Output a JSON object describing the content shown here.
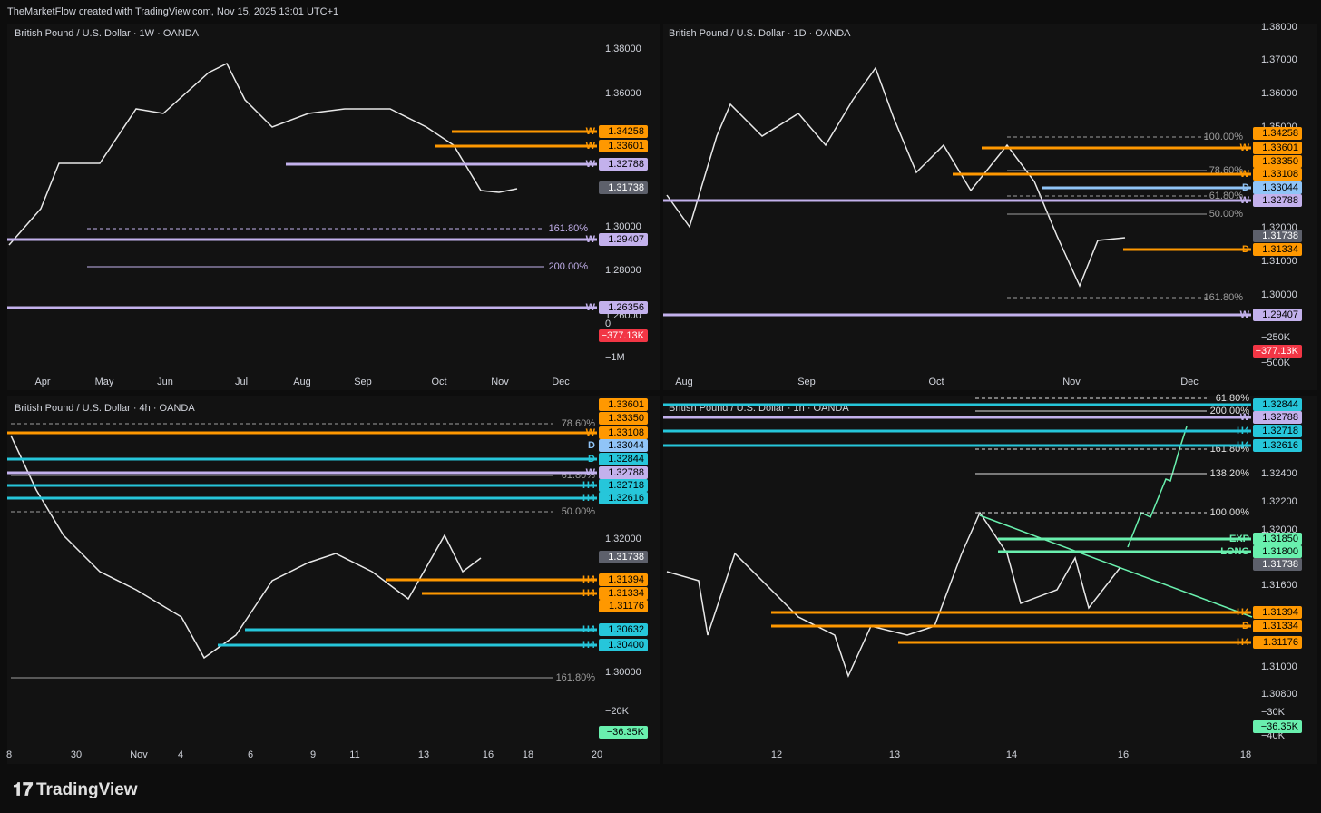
{
  "header": {
    "text": "TheMarketFlow created with TradingView.com, Nov 15, 2025 13:01 UTC+1"
  },
  "footer": {
    "brand": "TradingView"
  },
  "panels": [
    {
      "title": "British Pound / U.S. Dollar · 1W · OANDA",
      "price_axis": [
        "1.38000",
        "1.36000",
        "1.30000",
        "1.28000",
        "1.26000"
      ],
      "volume_axis": [
        "0",
        "−1M"
      ],
      "volume_label": "−377.13K",
      "levels": [
        {
          "price": "1.34258",
          "color": "#ff9800",
          "tag": "W"
        },
        {
          "price": "1.33601",
          "color": "#ff9800",
          "tag": "W"
        },
        {
          "price": "1.32788",
          "color": "#c3b1ec",
          "tag": "W"
        },
        {
          "price": "1.31738",
          "color": "#5d606b"
        },
        {
          "price": "1.29407",
          "color": "#c3b1ec",
          "tag": "W"
        },
        {
          "price": "1.26356",
          "color": "#c3b1ec",
          "tag": "W"
        }
      ],
      "fib_labels": [
        "161.80%",
        "200.00%"
      ],
      "time_axis": [
        "Apr",
        "May",
        "Jun",
        "Jul",
        "Aug",
        "Sep",
        "Oct",
        "Nov",
        "Dec"
      ]
    },
    {
      "title": "British Pound / U.S. Dollar · 1D · OANDA",
      "price_axis": [
        "1.38000",
        "1.37000",
        "1.36000",
        "1.35000",
        "1.32000",
        "1.31000",
        "1.30000"
      ],
      "volume_axis": [
        "−250K",
        "−500K"
      ],
      "volume_label": "−377.13K",
      "levels": [
        {
          "price": "1.34258",
          "color": "#ff9800"
        },
        {
          "price": "1.33601",
          "color": "#ff9800",
          "tag": "W"
        },
        {
          "price": "1.33350",
          "color": "#ff9800"
        },
        {
          "price": "1.33108",
          "color": "#ff9800",
          "tag": "W"
        },
        {
          "price": "1.33044",
          "color": "#90c4f7",
          "tag": "D"
        },
        {
          "price": "1.32788",
          "color": "#c3b1ec",
          "tag": "W"
        },
        {
          "price": "1.31738",
          "color": "#5d606b"
        },
        {
          "price": "1.31334",
          "color": "#ff9800",
          "tag": "D"
        },
        {
          "price": "1.29407",
          "color": "#c3b1ec",
          "tag": "W"
        }
      ],
      "fib_labels": [
        "100.00%",
        "78.60%",
        "61.80%",
        "50.00%",
        "161.80%"
      ],
      "time_axis": [
        "Aug",
        "Sep",
        "Oct",
        "Nov",
        "Dec"
      ]
    },
    {
      "title": "British Pound / U.S. Dollar · 4h · OANDA",
      "price_axis": [
        "1.32000",
        "1.30000"
      ],
      "volume_axis": [
        "−20K"
      ],
      "volume_label": "−36.35K",
      "levels": [
        {
          "price": "1.33601",
          "color": "#ff9800"
        },
        {
          "price": "1.33350",
          "color": "#ff9800"
        },
        {
          "price": "1.33108",
          "color": "#ff9800",
          "tag": "W"
        },
        {
          "price": "1.33044",
          "color": "#90c4f7",
          "tag": "D"
        },
        {
          "price": "1.32844",
          "color": "#26c6da",
          "tag": "D"
        },
        {
          "price": "1.32788",
          "color": "#c3b1ec",
          "tag": "W"
        },
        {
          "price": "1.32718",
          "color": "#26c6da",
          "tag": "H4"
        },
        {
          "price": "1.32616",
          "color": "#26c6da",
          "tag": "H4"
        },
        {
          "price": "1.31738",
          "color": "#5d606b"
        },
        {
          "price": "1.31394",
          "color": "#ff9800",
          "tag": "H4"
        },
        {
          "price": "1.31334",
          "color": "#ff9800",
          "tag": "H4"
        },
        {
          "price": "1.31176",
          "color": "#ff9800"
        },
        {
          "price": "1.30632",
          "color": "#26c6da",
          "tag": "H4"
        },
        {
          "price": "1.30400",
          "color": "#26c6da",
          "tag": "H4"
        }
      ],
      "fib_labels": [
        "78.60%",
        "61.80%",
        "50.00%",
        "161.80%"
      ],
      "time_axis": [
        "8",
        "30",
        "Nov",
        "4",
        "6",
        "9",
        "11",
        "13",
        "16",
        "18",
        "20"
      ]
    },
    {
      "title": "British Pound / U.S. Dollar · 1h · OANDA",
      "price_axis": [
        "1.32400",
        "1.32200",
        "1.32000",
        "1.31600",
        "1.31000",
        "1.30800"
      ],
      "volume_axis": [
        "−30K",
        "−40K"
      ],
      "volume_label": "−36.35K",
      "levels": [
        {
          "price": "1.32844",
          "color": "#26c6da"
        },
        {
          "price": "1.32788",
          "color": "#c3b1ec",
          "tag": "W"
        },
        {
          "price": "1.32718",
          "color": "#26c6da",
          "tag": "H4"
        },
        {
          "price": "1.32616",
          "color": "#26c6da",
          "tag": "H4"
        },
        {
          "price": "1.31850",
          "color": "#69f0ae",
          "tag": "EXP"
        },
        {
          "price": "1.31800",
          "color": "#69f0ae",
          "tag": "LONG"
        },
        {
          "price": "1.31738",
          "color": "#5d606b"
        },
        {
          "price": "1.31394",
          "color": "#ff9800",
          "tag": "H4"
        },
        {
          "price": "1.31334",
          "color": "#ff9800",
          "tag": "D"
        },
        {
          "price": "1.31176",
          "color": "#ff9800",
          "tag": "H4"
        }
      ],
      "fib_labels": [
        "61.80%",
        "200.00%",
        "161.80%",
        "138.20%",
        "100.00%"
      ],
      "time_axis": [
        "12",
        "13",
        "14",
        "16",
        "18"
      ]
    }
  ]
}
